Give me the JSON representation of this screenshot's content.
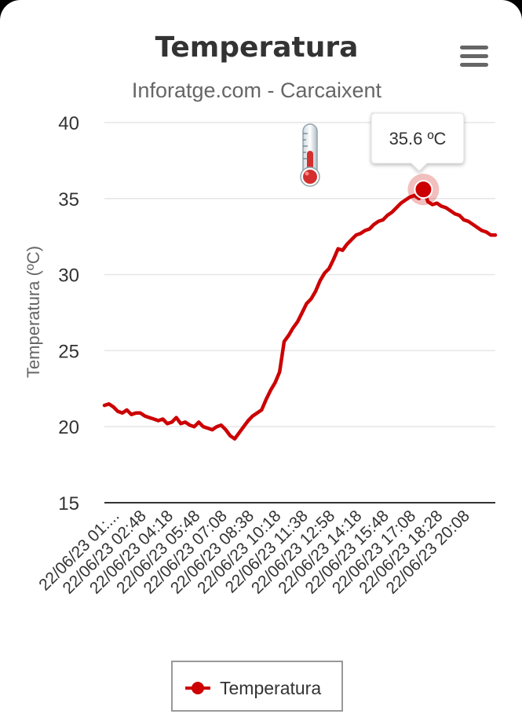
{
  "chart_data": {
    "type": "line",
    "title": "Temperatura",
    "subtitle": "Inforatge.com - Carcaixent",
    "ylabel": "Temperatura (ºC)",
    "xlabel": "",
    "ylim": [
      15,
      40
    ],
    "yticks": [
      15,
      20,
      25,
      30,
      35,
      40
    ],
    "grid": true,
    "legend": "bottom-center",
    "x_tick_labels": [
      "22/06/23 01:...",
      "22/06/23 02:48",
      "22/06/23 04:18",
      "22/06/23 05:48",
      "22/06/23 07:08",
      "22/06/23 08:38",
      "22/06/23 10:18",
      "22/06/23 11:38",
      "22/06/23 12:58",
      "22/06/23 14:18",
      "22/06/23 15:48",
      "22/06/23 17:08",
      "22/06/23 18:28",
      "22/06/23 20:08"
    ],
    "series": [
      {
        "name": "Temperatura",
        "color": "#cc0000",
        "values": [
          21.4,
          21.5,
          21.3,
          21.0,
          20.9,
          21.1,
          20.8,
          20.9,
          20.9,
          20.7,
          20.6,
          20.5,
          20.4,
          20.5,
          20.2,
          20.3,
          20.6,
          20.2,
          20.3,
          20.1,
          20.0,
          20.3,
          20.0,
          19.9,
          19.8,
          20.0,
          20.1,
          19.8,
          19.4,
          19.2,
          19.6,
          20.0,
          20.4,
          20.7,
          20.9,
          21.1,
          21.8,
          22.4,
          22.9,
          23.6,
          25.6,
          26.0,
          26.5,
          26.9,
          27.5,
          28.1,
          28.4,
          28.9,
          29.6,
          30.1,
          30.4,
          31.0,
          31.7,
          31.6,
          32.0,
          32.3,
          32.6,
          32.7,
          32.9,
          33.0,
          33.3,
          33.5,
          33.6,
          33.9,
          34.1,
          34.4,
          34.7,
          34.9,
          35.1,
          35.2,
          35.0,
          35.6,
          34.8,
          34.6,
          34.7,
          34.5,
          34.4,
          34.2,
          34.0,
          33.9,
          33.6,
          33.5,
          33.3,
          33.1,
          32.9,
          32.8,
          32.6,
          32.6
        ]
      }
    ],
    "tooltip": {
      "value": "35.6 ºC",
      "index": 71
    }
  },
  "icons": {
    "menu": "hamburger-menu-icon",
    "thermometer": "thermometer-icon"
  }
}
